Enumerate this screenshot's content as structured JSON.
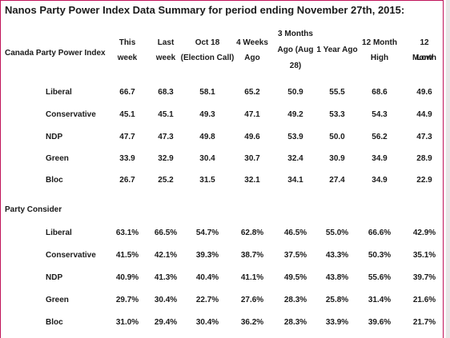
{
  "title": "Nanos Party Power Index Data Summary for period ending November 27th, 2015:",
  "headers": [
    {
      "lines": [
        "This",
        "week"
      ]
    },
    {
      "lines": [
        "Last",
        "week"
      ]
    },
    {
      "lines": [
        "Oct 18",
        "(Election Call)"
      ]
    },
    {
      "lines": [
        "4 Weeks",
        "Ago"
      ]
    },
    {
      "lines": [
        "3 Months",
        "Ago (Aug",
        "28)"
      ]
    },
    {
      "lines": [
        "1 Year Ago"
      ]
    },
    {
      "lines": [
        "12 Month",
        "High"
      ]
    },
    {
      "lines": [
        "12 Month",
        "Low"
      ]
    }
  ],
  "sections": [
    {
      "title": "Canada Party Power Index",
      "rows": [
        {
          "label": "Liberal",
          "values": [
            "66.7",
            "68.3",
            "58.1",
            "65.2",
            "50.9",
            "55.5",
            "68.6",
            "49.6"
          ]
        },
        {
          "label": "Conservative",
          "values": [
            "45.1",
            "45.1",
            "49.3",
            "47.1",
            "49.2",
            "53.3",
            "54.3",
            "44.9"
          ]
        },
        {
          "label": "NDP",
          "values": [
            "47.7",
            "47.3",
            "49.8",
            "49.6",
            "53.9",
            "50.0",
            "56.2",
            "47.3"
          ]
        },
        {
          "label": "Green",
          "values": [
            "33.9",
            "32.9",
            "30.4",
            "30.7",
            "32.4",
            "30.9",
            "34.9",
            "28.9"
          ]
        },
        {
          "label": "Bloc",
          "values": [
            "26.7",
            "25.2",
            "31.5",
            "32.1",
            "34.1",
            "27.4",
            "34.9",
            "22.9"
          ]
        }
      ]
    },
    {
      "title": "Party Consider",
      "rows": [
        {
          "label": "Liberal",
          "values": [
            "63.1%",
            "66.5%",
            "54.7%",
            "62.8%",
            "46.5%",
            "55.0%",
            "66.6%",
            "42.9%"
          ]
        },
        {
          "label": "Conservative",
          "values": [
            "41.5%",
            "42.1%",
            "39.3%",
            "38.7%",
            "37.5%",
            "43.3%",
            "50.3%",
            "35.1%"
          ]
        },
        {
          "label": "NDP",
          "values": [
            "40.9%",
            "41.3%",
            "40.4%",
            "41.1%",
            "49.5%",
            "43.8%",
            "55.6%",
            "39.7%"
          ]
        },
        {
          "label": "Green",
          "values": [
            "29.7%",
            "30.4%",
            "22.7%",
            "27.6%",
            "28.3%",
            "25.8%",
            "31.4%",
            "21.6%"
          ]
        },
        {
          "label": "Bloc",
          "values": [
            "31.0%",
            "29.4%",
            "30.4%",
            "36.2%",
            "28.3%",
            "33.9%",
            "39.6%",
            "21.7%"
          ]
        }
      ]
    }
  ],
  "colors": {
    "border": "#c0145a",
    "text": "#1a1a1a"
  }
}
